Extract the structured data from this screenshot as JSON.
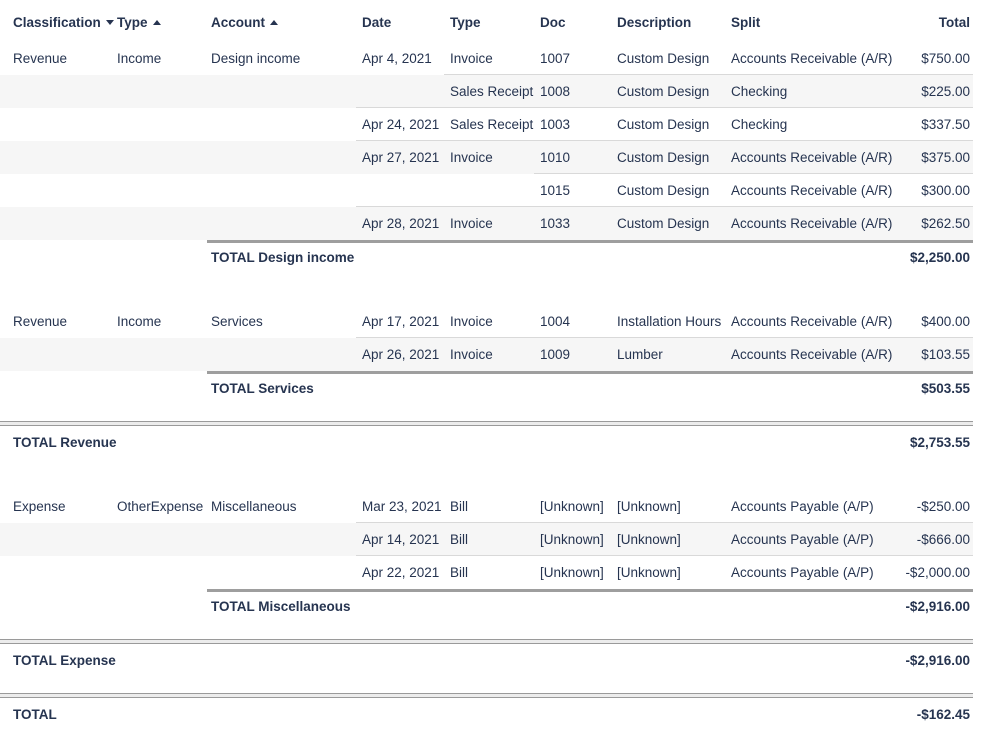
{
  "report": {
    "columns": {
      "classification": {
        "label": "Classification",
        "sort": "descending",
        "sort_icon": "sort-descending-icon"
      },
      "type": {
        "label": "Type",
        "sort": "ascending",
        "sort_icon": "sort-ascending-icon"
      },
      "account": {
        "label": "Account",
        "sort": "ascending",
        "sort_icon": "sort-ascending-icon"
      },
      "date": {
        "label": "Date"
      },
      "txn_type": {
        "label": "Type"
      },
      "doc": {
        "label": "Doc"
      },
      "description": {
        "label": "Description"
      },
      "split": {
        "label": "Split"
      },
      "total": {
        "label": "Total"
      }
    },
    "groups": [
      {
        "total": {
          "label": "TOTAL Design income",
          "value": "$2,250.00"
        },
        "rows": [
          {
            "cls": "Revenue",
            "typ": "Income",
            "acct": "Design income",
            "date": "Apr 4, 2021",
            "txn": "Invoice",
            "doc": "1007",
            "desc": "Custom Design",
            "split": "Accounts Receivable (A/R)",
            "total": "$750.00"
          },
          {
            "cls": "",
            "typ": "",
            "acct": "",
            "date": "",
            "txn": "Sales Receipt",
            "doc": "1008",
            "desc": "Custom Design",
            "split": "Checking",
            "total": "$225.00"
          },
          {
            "cls": "",
            "typ": "",
            "acct": "",
            "date": "Apr 24, 2021",
            "txn": "Sales Receipt",
            "doc": "1003",
            "desc": "Custom Design",
            "split": "Checking",
            "total": "$337.50"
          },
          {
            "cls": "",
            "typ": "",
            "acct": "",
            "date": "Apr 27, 2021",
            "txn": "Invoice",
            "doc": "1010",
            "desc": "Custom Design",
            "split": "Accounts Receivable (A/R)",
            "total": "$375.00"
          },
          {
            "cls": "",
            "typ": "",
            "acct": "",
            "date": "",
            "txn": "",
            "doc": "1015",
            "desc": "Custom Design",
            "split": "Accounts Receivable (A/R)",
            "total": "$300.00"
          },
          {
            "cls": "",
            "typ": "",
            "acct": "",
            "date": "Apr 28, 2021",
            "txn": "Invoice",
            "doc": "1033",
            "desc": "Custom Design",
            "split": "Accounts Receivable (A/R)",
            "total": "$262.50"
          }
        ]
      },
      {
        "total": {
          "label": "TOTAL Services",
          "value": "$503.55"
        },
        "rows": [
          {
            "cls": "Revenue",
            "typ": "Income",
            "acct": "Services",
            "date": "Apr 17, 2021",
            "txn": "Invoice",
            "doc": "1004",
            "desc": "Installation Hours",
            "split": "Accounts Receivable (A/R)",
            "total": "$400.00"
          },
          {
            "cls": "",
            "typ": "",
            "acct": "",
            "date": "Apr 26, 2021",
            "txn": "Invoice",
            "doc": "1009",
            "desc": "Lumber",
            "split": "Accounts Receivable (A/R)",
            "total": "$103.55"
          }
        ]
      },
      {
        "total": {
          "label": "TOTAL Miscellaneous",
          "value": "-$2,916.00"
        },
        "rows": [
          {
            "cls": "Expense",
            "typ": "OtherExpense",
            "acct": "Miscellaneous",
            "date": "Mar 23, 2021",
            "txn": "Bill",
            "doc": "[Unknown]",
            "desc": "[Unknown]",
            "split": "Accounts Payable (A/P)",
            "total": "-$250.00"
          },
          {
            "cls": "",
            "typ": "",
            "acct": "",
            "date": "Apr 14, 2021",
            "txn": "Bill",
            "doc": "[Unknown]",
            "desc": "[Unknown]",
            "split": "Accounts Payable (A/P)",
            "total": "-$666.00"
          },
          {
            "cls": "",
            "typ": "",
            "acct": "",
            "date": "Apr 22, 2021",
            "txn": "Bill",
            "doc": "[Unknown]",
            "desc": "[Unknown]",
            "split": "Accounts Payable (A/P)",
            "total": "-$2,000.00"
          }
        ]
      }
    ],
    "section_totals": [
      {
        "label": "TOTAL Revenue",
        "value": "$2,753.55"
      },
      {
        "label": "TOTAL Expense",
        "value": "-$2,916.00"
      },
      {
        "label": "TOTAL",
        "value": "-$162.45"
      }
    ],
    "colors": {
      "text": "#263450",
      "stripe": "#f6f6f6",
      "row_divider": "#d9d9d9",
      "total_rule": "#9e9e9e",
      "section_rule": "#9a9a9a"
    }
  }
}
